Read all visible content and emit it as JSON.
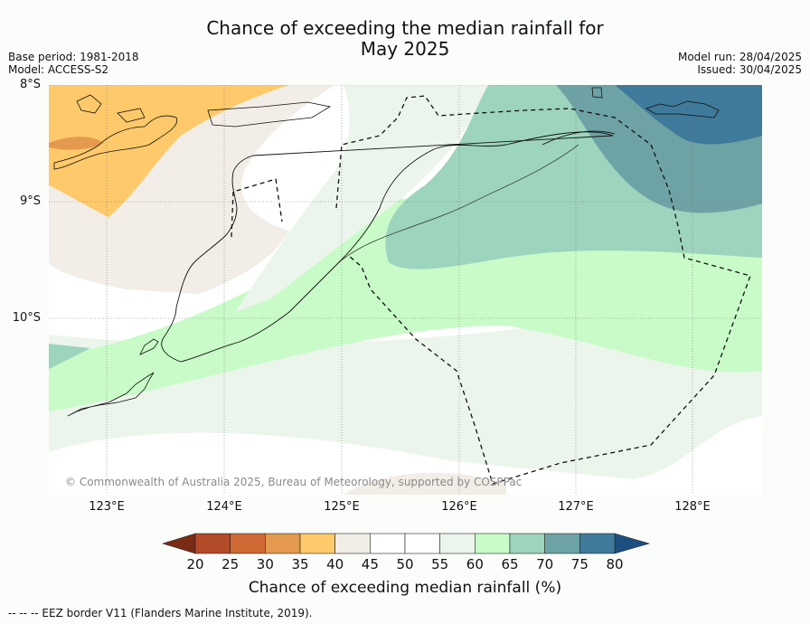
{
  "title_line1": "Chance of exceeding the median rainfall for",
  "title_line2": "May 2025",
  "left_meta": {
    "base_period": "Base period: 1981-2018",
    "model": "Model: ACCESS-S2"
  },
  "right_meta": {
    "model_run": "Model run: 28/04/2025",
    "issued": "Issued: 30/04/2025"
  },
  "map": {
    "lat_labels": [
      "8°S",
      "9°S",
      "10°S"
    ],
    "lon_labels": [
      "123°E",
      "124°E",
      "125°E",
      "126°E",
      "127°E",
      "128°E"
    ],
    "copyright": "© Commonwealth of Australia 2025, Bureau of Meteorology, supported by COSPPac"
  },
  "colorbar": {
    "title": "Chance of exceeding median rainfall (%)",
    "ticks": [
      "20",
      "25",
      "30",
      "35",
      "40",
      "45",
      "50",
      "55",
      "60",
      "65",
      "70",
      "75",
      "80"
    ],
    "colors": [
      "#7b2a14",
      "#b34a28",
      "#d06a34",
      "#e49a4e",
      "#fdc96a",
      "#f2ede6",
      "#ffffff",
      "#ffffff",
      "#ecf5ec",
      "#c8fbc8",
      "#9dd4bd",
      "#6ea3a5",
      "#3f7a9a",
      "#1c4f80"
    ]
  },
  "footer": "--  --  -- EEZ border V11 (Flanders Marine Institute, 2019)."
}
